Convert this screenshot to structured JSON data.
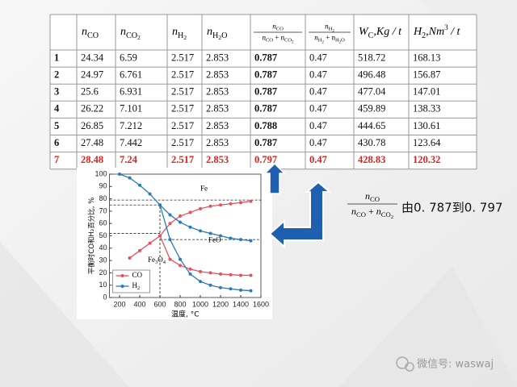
{
  "table": {
    "header": [
      null,
      {
        "text": [
          {
            "t": "n",
            "s": "i"
          },
          {
            "t": "CO",
            "s": "sub"
          }
        ]
      },
      {
        "text": [
          {
            "t": "n",
            "s": "i"
          },
          {
            "t": "CO",
            "s": "sub"
          },
          {
            "t": "2",
            "s": "sub2"
          }
        ]
      },
      {
        "text": [
          {
            "t": "n",
            "s": "i"
          },
          {
            "t": "H",
            "s": "sub"
          },
          {
            "t": "2",
            "s": "sub2"
          }
        ]
      },
      {
        "text": [
          {
            "t": "n",
            "s": "i"
          },
          {
            "t": "H",
            "s": "sub"
          },
          {
            "t": "2",
            "s": "sub2"
          },
          {
            "t": "O",
            "s": "sub"
          }
        ]
      },
      {
        "num": [
          {
            "t": "n",
            "s": "i"
          },
          {
            "t": "CO",
            "s": "sub"
          }
        ],
        "den": [
          {
            "t": "n",
            "s": "i"
          },
          {
            "t": "CO",
            "s": "sub"
          },
          {
            "t": " + ",
            "s": ""
          },
          {
            "t": "n",
            "s": "i"
          },
          {
            "t": "CO",
            "s": "sub"
          },
          {
            "t": "2",
            "s": "sub2"
          }
        ]
      },
      {
        "num": [
          {
            "t": "n",
            "s": "i"
          },
          {
            "t": "H",
            "s": "sub"
          },
          {
            "t": "2",
            "s": "sub2"
          }
        ],
        "den": [
          {
            "t": "n",
            "s": "i"
          },
          {
            "t": "H",
            "s": "sub"
          },
          {
            "t": "2",
            "s": "sub2"
          },
          {
            "t": " + ",
            "s": ""
          },
          {
            "t": "n",
            "s": "i"
          },
          {
            "t": "H",
            "s": "sub"
          },
          {
            "t": "2",
            "s": "sub2"
          },
          {
            "t": "O",
            "s": "sub"
          }
        ]
      },
      {
        "text": [
          {
            "t": "W",
            "s": "i"
          },
          {
            "t": "C",
            "s": "sub"
          },
          {
            "t": ",Kg / t",
            "s": "i"
          }
        ]
      },
      {
        "text": [
          {
            "t": "H",
            "s": "i"
          },
          {
            "t": "2",
            "s": "sub"
          },
          {
            "t": ",Nm",
            "s": "i"
          },
          {
            "t": "3",
            "s": "sup"
          },
          {
            "t": " / t",
            "s": "i"
          }
        ]
      }
    ],
    "rows": [
      [
        "1",
        "24.34",
        "6.59",
        "2.517",
        "2.853",
        "0.787",
        "0.47",
        "518.72",
        "168.13"
      ],
      [
        "2",
        "24.97",
        "6.761",
        "2.517",
        "2.853",
        "0.787",
        "0.47",
        "496.48",
        "156.87"
      ],
      [
        "3",
        "25.6",
        "6.931",
        "2.517",
        "2.853",
        "0.787",
        "0.47",
        "477.04",
        "147.01"
      ],
      [
        "4",
        "26.22",
        "7.101",
        "2.517",
        "2.853",
        "0.787",
        "0.47",
        "459.89",
        "138.33"
      ],
      [
        "5",
        "26.85",
        "7.212",
        "2.517",
        "2.853",
        "0.788",
        "0.47",
        "444.65",
        "130.61"
      ],
      [
        "6",
        "27.48",
        "7.442",
        "2.517",
        "2.853",
        "0.787",
        "0.47",
        "430.78",
        "123.64"
      ],
      [
        "7",
        "28.48",
        "7.24",
        "2.517",
        "2.853",
        "0.797",
        "0.47",
        "428.83",
        "120.32"
      ]
    ]
  },
  "chart": {
    "type": "line",
    "x_label": "温度, °C",
    "y_label": "平衡时CO和H₂百分比, %",
    "xlim": [
      100,
      1600
    ],
    "ylim": [
      0,
      100
    ],
    "xticks": [
      200,
      400,
      600,
      800,
      1000,
      1200,
      1400,
      1600
    ],
    "yticks": [
      0,
      10,
      20,
      30,
      40,
      50,
      60,
      70,
      80,
      90,
      100
    ],
    "series": [
      {
        "name": "CO",
        "color": "#e8505b",
        "curves": [
          {
            "x": [
              300,
              400,
              500,
              600,
              700,
              800,
              900,
              1000,
              1100,
              1200,
              1300,
              1400,
              1500
            ],
            "values": [
              32,
              38,
              44,
              50,
              60,
              66,
              69,
              72,
              74,
              75,
              76,
              77,
              78
            ]
          },
          {
            "x": [
              600,
              700,
              800,
              900,
              1000,
              1100,
              1200,
              1300,
              1400,
              1500
            ],
            "values": [
              50,
              31,
              26,
              23,
              21,
              20,
              19,
              18.5,
              18,
              18
            ]
          }
        ]
      },
      {
        "name": "H2",
        "label": [
          {
            "t": "H",
            "s": ""
          },
          {
            "t": "2",
            "s": "sub"
          }
        ],
        "color": "#2a7ab8",
        "curves": [
          {
            "x": [
              200,
              300,
              400,
              500,
              600,
              700,
              800,
              900,
              1000,
              1100,
              1200,
              1300,
              1400,
              1500
            ],
            "values": [
              100,
              97,
              91,
              84,
              75,
              67,
              61,
              57,
              54,
              52,
              50,
              48,
              47,
              46
            ]
          },
          {
            "x": [
              600,
              700,
              800,
              900,
              1000,
              1100,
              1200,
              1300,
              1400,
              1500
            ],
            "values": [
              75,
              47,
              31,
              19,
              13,
              10,
              8,
              7,
              6,
              5.5
            ]
          }
        ]
      }
    ],
    "ref_lines": [
      {
        "y": 79,
        "x": [
          100,
          1600
        ]
      },
      {
        "y": 75,
        "x": [
          100,
          600
        ]
      },
      {
        "y": 52,
        "x": [
          100,
          600
        ]
      },
      {
        "y": 47,
        "x": [
          600,
          1600
        ]
      },
      {
        "x": 600,
        "y": [
          0,
          75
        ]
      }
    ],
    "annotations": [
      {
        "x": 1000,
        "y": 88,
        "text": [
          {
            "t": "Fe",
            "s": ""
          }
        ]
      },
      {
        "x": 1080,
        "y": 46,
        "text": [
          {
            "t": "FeO",
            "s": ""
          }
        ]
      },
      {
        "x": 480,
        "y": 30,
        "text": [
          {
            "t": "Fe",
            "s": ""
          },
          {
            "t": "3",
            "s": "sub"
          },
          {
            "t": "O",
            "s": ""
          },
          {
            "t": "4",
            "s": "sub"
          }
        ]
      }
    ]
  },
  "formula": {
    "num": [
      {
        "t": "n",
        "s": "i"
      },
      {
        "t": "CO",
        "s": "sub"
      }
    ],
    "den": [
      {
        "t": "n",
        "s": "i"
      },
      {
        "t": "CO",
        "s": "sub"
      },
      {
        "t": " + ",
        "s": ""
      },
      {
        "t": "n",
        "s": "i"
      },
      {
        "t": "CO",
        "s": "sub"
      },
      {
        "t": "2",
        "s": "sub2"
      }
    ]
  },
  "caption": "由0. 787到0. 797",
  "watermark": "微信号: waswaj"
}
